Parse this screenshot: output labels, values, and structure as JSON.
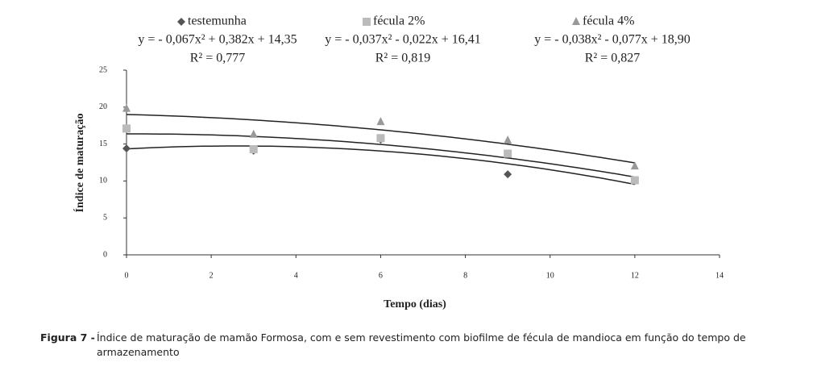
{
  "chart_data": {
    "type": "scatter",
    "x_label": "Tempo (dias)",
    "y_label": "Índice de maturação",
    "x": [
      0,
      3,
      6,
      9,
      12
    ],
    "series": [
      {
        "name": "testemunha",
        "color": "#555555",
        "marker": "diamond",
        "values": [
          14.4,
          14.1,
          15.6,
          10.9,
          10.0
        ],
        "equation": "y = - 0,067x² + 0,382x + 14,35",
        "r2": "R² = 0,777"
      },
      {
        "name": "fécula 2%",
        "color": "#bbbbbb",
        "marker": "square",
        "values": [
          17.1,
          14.3,
          15.8,
          13.7,
          10.1
        ],
        "equation": "y = - 0,037x² - 0,022x + 16,41",
        "r2": "R² = 0,819"
      },
      {
        "name": "fécula 4%",
        "color": "#999999",
        "marker": "triangle",
        "values": [
          19.8,
          16.3,
          18.0,
          15.5,
          12.0
        ],
        "equation": "y = - 0,038x² - 0,077x + 18,90",
        "r2": "R² = 0,827"
      }
    ],
    "xlim": [
      0,
      14
    ],
    "xticks": [
      0,
      2,
      4,
      6,
      8,
      10,
      12,
      14
    ],
    "ylim": [
      0,
      25
    ],
    "yticks": [
      0,
      5,
      10,
      15,
      20,
      25
    ],
    "trendline": "polynomial-2",
    "grid": false
  },
  "caption": {
    "label": "Figura 7 -",
    "text": "Índice de maturação de mamão Formosa, com e sem revestimento com biofilme de fécula de mandioca em função do tempo de armazenamento"
  }
}
